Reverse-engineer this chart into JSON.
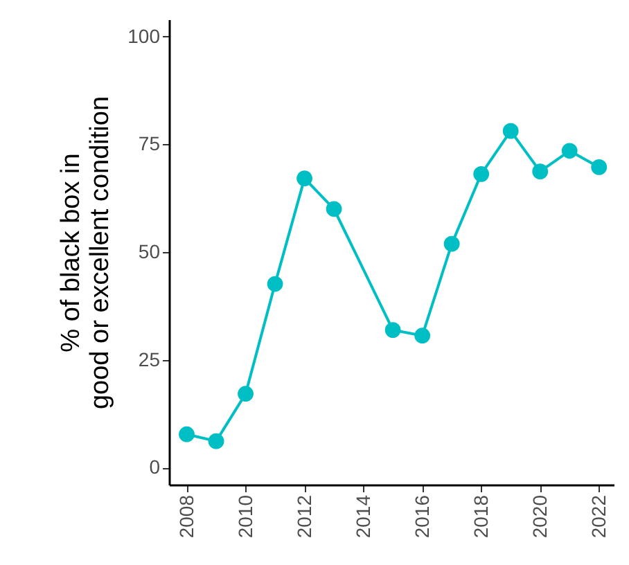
{
  "chart_data": {
    "type": "line",
    "ylabel": "% of black box in\ngood or excellent condition",
    "x": [
      2008,
      2009,
      2010,
      2011,
      2012,
      2013,
      2015,
      2016,
      2017,
      2018,
      2019,
      2020,
      2021,
      2022
    ],
    "series": [
      {
        "color": "#00bfc4",
        "values": [
          7.7,
          6.1,
          17.1,
          42.6,
          67.1,
          60,
          31.9,
          30.6,
          51.9,
          68.1,
          78.1,
          68.7,
          73.5,
          69.7
        ]
      }
    ],
    "xlim": [
      2007.4,
      2022.5
    ],
    "xticks": [
      2008,
      2010,
      2012,
      2014,
      2016,
      2018,
      2020,
      2022
    ],
    "ylim": [
      -4,
      104
    ],
    "yticks": [
      0,
      25,
      50,
      75,
      100
    ],
    "marker": "circle",
    "line_style": "solid"
  }
}
